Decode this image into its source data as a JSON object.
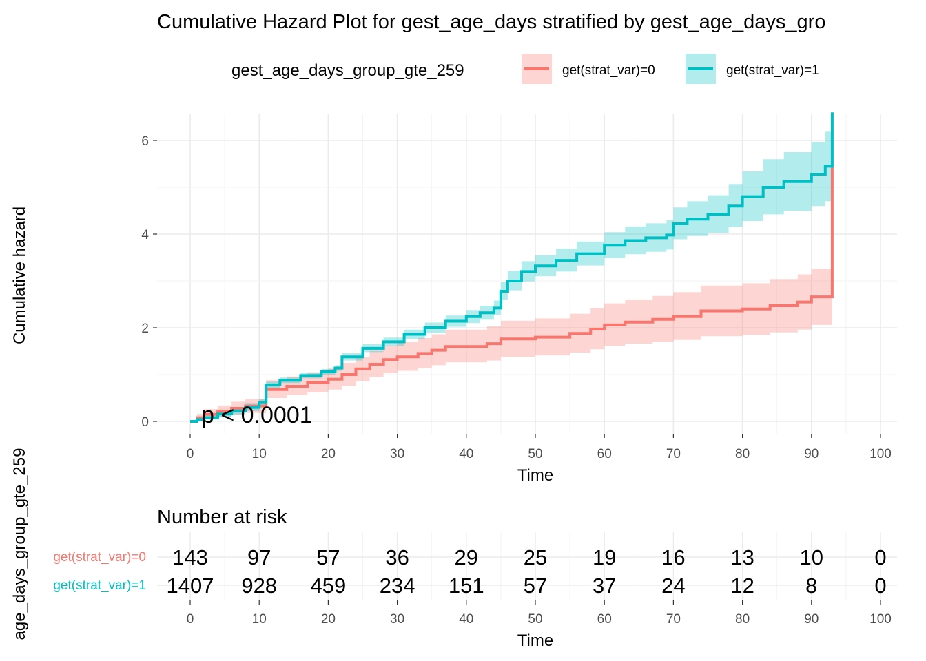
{
  "title": "Cumulative Hazard Plot for gest_age_days stratified by gest_age_days_gro",
  "legend": {
    "title": "gest_age_days_group_gte_259",
    "items": [
      {
        "label": "get(strat_var)=0",
        "color": "#F8766D",
        "fill": "#F8766D"
      },
      {
        "label": "get(strat_var)=1",
        "color": "#00BFC4",
        "fill": "#00BFC4"
      }
    ]
  },
  "chart_data": {
    "type": "line",
    "step": true,
    "xlabel": "Time",
    "ylabel": "Cumulative hazard",
    "xlim": [
      0,
      102
    ],
    "ylim": [
      -0.2,
      6.6
    ],
    "x_ticks": [
      0,
      10,
      20,
      30,
      40,
      50,
      60,
      70,
      80,
      90,
      100
    ],
    "y_ticks": [
      0,
      2,
      4,
      6
    ],
    "grid": true,
    "legend_position": "top",
    "annotation": "p < 0.0001",
    "series": [
      {
        "name": "get(strat_var)=0",
        "color": "#F8766D",
        "x": [
          0,
          1,
          2,
          4,
          6,
          8,
          11,
          14,
          17,
          20,
          22,
          24,
          26,
          28,
          30,
          33,
          35,
          37,
          40,
          43,
          45,
          50,
          55,
          58,
          60,
          63,
          67,
          70,
          74,
          80,
          84,
          88,
          90,
          93,
          93
        ],
        "y": [
          0,
          0.08,
          0.15,
          0.22,
          0.28,
          0.33,
          0.68,
          0.75,
          0.83,
          0.9,
          1.0,
          1.12,
          1.22,
          1.32,
          1.38,
          1.45,
          1.52,
          1.6,
          1.6,
          1.66,
          1.76,
          1.8,
          1.88,
          1.97,
          2.06,
          2.12,
          2.18,
          2.24,
          2.36,
          2.4,
          2.47,
          2.55,
          2.66,
          2.66,
          5.45
        ],
        "lower": [
          0,
          0.02,
          0.06,
          0.1,
          0.14,
          0.18,
          0.5,
          0.56,
          0.62,
          0.68,
          0.76,
          0.86,
          0.95,
          1.03,
          1.08,
          1.14,
          1.2,
          1.26,
          1.26,
          1.3,
          1.38,
          1.41,
          1.47,
          1.54,
          1.61,
          1.66,
          1.7,
          1.74,
          1.82,
          1.85,
          1.9,
          1.96,
          2.06,
          2.06,
          2.06
        ],
        "upper": [
          0,
          0.16,
          0.26,
          0.34,
          0.42,
          0.48,
          0.88,
          0.96,
          1.05,
          1.13,
          1.25,
          1.38,
          1.5,
          1.62,
          1.7,
          1.78,
          1.86,
          1.96,
          1.96,
          2.03,
          2.15,
          2.2,
          2.3,
          2.42,
          2.52,
          2.6,
          2.68,
          2.76,
          2.9,
          2.95,
          3.04,
          3.14,
          3.26,
          3.26,
          3.26
        ]
      },
      {
        "name": "get(strat_var)=1",
        "color": "#00BFC4",
        "x": [
          0,
          1,
          2,
          4,
          6,
          8,
          10,
          11,
          13,
          16,
          19,
          21,
          22,
          25,
          28,
          31,
          34,
          37,
          40,
          42,
          44,
          45,
          46,
          48,
          50,
          53,
          56,
          60,
          63,
          66,
          69,
          70,
          72,
          75,
          78,
          80,
          83,
          86,
          90,
          92,
          93,
          93
        ],
        "y": [
          0,
          0.04,
          0.08,
          0.16,
          0.22,
          0.3,
          0.4,
          0.78,
          0.88,
          0.98,
          1.06,
          1.14,
          1.38,
          1.56,
          1.7,
          1.86,
          2.0,
          2.14,
          2.24,
          2.32,
          2.42,
          2.78,
          3.0,
          3.2,
          3.32,
          3.44,
          3.58,
          3.76,
          3.86,
          3.92,
          3.98,
          4.22,
          4.32,
          4.42,
          4.6,
          4.8,
          5.0,
          5.12,
          5.28,
          5.45,
          5.45,
          6.6
        ],
        "lower": [
          0,
          0.01,
          0.04,
          0.1,
          0.15,
          0.22,
          0.32,
          0.72,
          0.82,
          0.92,
          1.0,
          1.08,
          1.3,
          1.48,
          1.61,
          1.76,
          1.89,
          2.02,
          2.1,
          2.17,
          2.27,
          2.6,
          2.8,
          2.99,
          3.1,
          3.2,
          3.33,
          3.49,
          3.57,
          3.62,
          3.67,
          3.89,
          3.96,
          4.03,
          4.15,
          4.28,
          4.42,
          4.5,
          4.6,
          4.7,
          4.7,
          4.7
        ],
        "upper": [
          0,
          0.07,
          0.12,
          0.22,
          0.29,
          0.38,
          0.48,
          0.85,
          0.94,
          1.04,
          1.12,
          1.2,
          1.46,
          1.65,
          1.79,
          1.96,
          2.11,
          2.26,
          2.38,
          2.47,
          2.58,
          2.97,
          3.21,
          3.42,
          3.55,
          3.69,
          3.84,
          4.04,
          4.16,
          4.23,
          4.3,
          4.57,
          4.7,
          4.83,
          5.07,
          5.34,
          5.6,
          5.75,
          5.97,
          6.2,
          6.2,
          6.2
        ]
      }
    ]
  },
  "risk_table": {
    "title": "Number at risk",
    "xlabel": "Time",
    "ylabel": "age_days_group_gte_259",
    "times": [
      0,
      10,
      20,
      30,
      40,
      50,
      60,
      70,
      80,
      90,
      100
    ],
    "rows": [
      {
        "strata": "get(strat_var)=0",
        "color": "#F8766D",
        "counts": [
          143,
          97,
          57,
          36,
          29,
          25,
          19,
          16,
          13,
          10,
          0
        ]
      },
      {
        "strata": "get(strat_var)=1",
        "color": "#00BFC4",
        "counts": [
          1407,
          928,
          459,
          234,
          151,
          57,
          37,
          24,
          12,
          8,
          0
        ]
      }
    ]
  }
}
